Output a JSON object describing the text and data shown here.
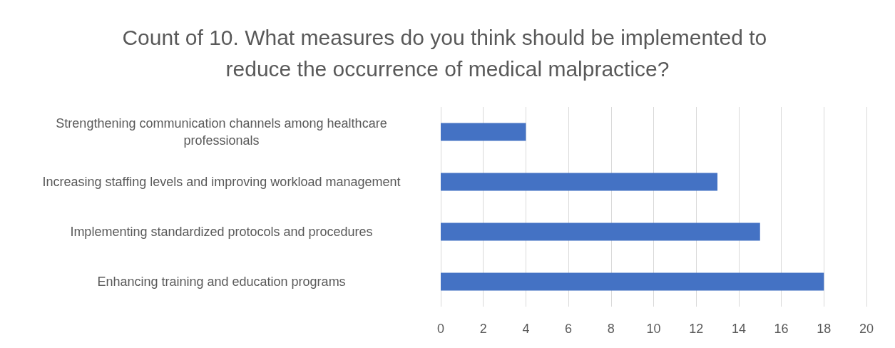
{
  "chart_data": {
    "type": "bar",
    "orientation": "horizontal",
    "title": "Count of 10. What measures do you think should be implemented to reduce the occurrence of medical malpractice?",
    "categories": [
      "Strengthening communication channels among healthcare professionals",
      "Increasing staffing levels and improving workload management",
      "Implementing standardized protocols and procedures",
      "Enhancing training and education programs"
    ],
    "values": [
      4,
      13,
      15,
      18
    ],
    "color": "#4472c4",
    "xlim": [
      0,
      20
    ],
    "xticks": [
      0,
      2,
      4,
      6,
      8,
      10,
      12,
      14,
      16,
      18,
      20
    ],
    "grid": "x"
  }
}
